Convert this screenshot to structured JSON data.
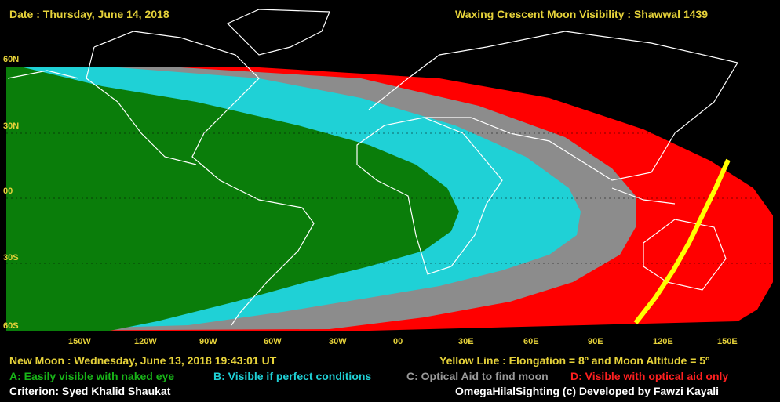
{
  "header": {
    "date": "Date : Thursday, June 14, 2018",
    "title": "Waxing Crescent Moon Visibility : Shawwal 1439"
  },
  "lat_labels": [
    "60N",
    "30N",
    "00",
    "30S",
    "60S"
  ],
  "lon_labels": [
    "150W",
    "120W",
    "90W",
    "60W",
    "30W",
    "00",
    "30E",
    "60E",
    "90E",
    "120E",
    "150E"
  ],
  "footer": {
    "new_moon": "New Moon : Wednesday, June 13, 2018  19:43:01  UT",
    "yellow_line": "Yellow Line : Elongation = 8º and Moon Altitude = 5º",
    "legend_a": "A: Easily visible with naked eye",
    "legend_b": "B: Visible if perfect conditions",
    "legend_c": "C: Optical Aid to find moon",
    "legend_d": "D: Visible with optical aid only",
    "criterion": "Criterion: Syed Khalid Shaukat",
    "credit": "OmegaHilalSighting  (c)  Developed by Fawzi Kayali"
  },
  "colors": {
    "zone_a": "#0a7d0a",
    "zone_b": "#1fd1d6",
    "zone_c": "#8c8c8c",
    "zone_d": "#ff0000",
    "yellow_line": "#ffff00",
    "label_yellow": "#e6d23a"
  }
}
